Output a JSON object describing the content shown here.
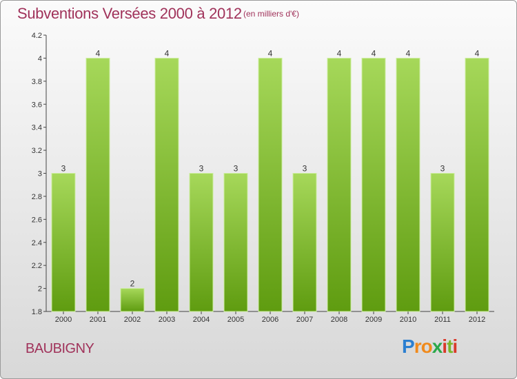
{
  "header": {
    "title": "Subventions Versées 2000 à 2012",
    "subtitle": "(en milliers d'€)"
  },
  "commune": "BAUBIGNY",
  "logo": {
    "text": "Proxiti",
    "letter_colors": [
      "#2b7fd0",
      "#f08a1c",
      "#f08a1c",
      "#2ba84a",
      "#d93a2b",
      "#7ab62c",
      "#d93a2b"
    ]
  },
  "colors": {
    "bar_light": "#a6d85a",
    "bar_dark": "#5f9c10",
    "bar_edge": "#cdeea0",
    "title": "#a0325a",
    "axis": "#444444"
  },
  "chart_data": {
    "type": "bar",
    "categories": [
      "2000",
      "2001",
      "2002",
      "2003",
      "2004",
      "2005",
      "2006",
      "2007",
      "2008",
      "2009",
      "2010",
      "2011",
      "2012"
    ],
    "values": [
      3,
      4,
      2,
      4,
      3,
      3,
      4,
      3,
      4,
      4,
      4,
      3,
      4
    ],
    "value_labels": [
      "3",
      "4",
      "2",
      "4",
      "3",
      "3",
      "4",
      "3",
      "4",
      "4",
      "4",
      "3",
      "4"
    ],
    "yticks": [
      "1.8",
      "2",
      "2.2",
      "2.4",
      "2.6",
      "2.8",
      "3",
      "3.2",
      "3.4",
      "3.6",
      "3.8",
      "4",
      "4.2"
    ],
    "ylim": [
      1.8,
      4.2
    ],
    "grid": false
  }
}
